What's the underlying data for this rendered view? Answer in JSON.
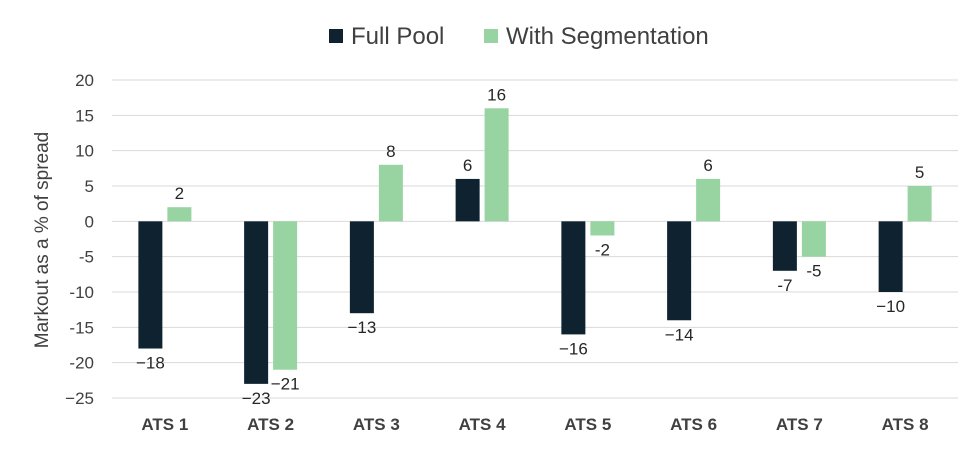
{
  "chart_data": {
    "type": "bar",
    "title": "",
    "xlabel": "",
    "ylabel": "Markout as a % of spread",
    "ylim": [
      -25,
      20
    ],
    "yticks": [
      20,
      15,
      10,
      5,
      0,
      -5,
      -10,
      -15,
      -20,
      -25
    ],
    "ytick_labels": [
      "20",
      "15",
      "10",
      "5",
      "0",
      "-5",
      "-10",
      "-15",
      "-20",
      "−25"
    ],
    "grid": true,
    "legend_position": "top-center",
    "categories": [
      "ATS 1",
      "ATS 2",
      "ATS 3",
      "ATS 4",
      "ATS 5",
      "ATS 6",
      "ATS 7",
      "ATS 8"
    ],
    "series": [
      {
        "name": "Full Pool",
        "color": "#0f2230",
        "values": [
          -18,
          -23,
          -13,
          6,
          -16,
          -14,
          -7,
          -10
        ],
        "labels": [
          "−18",
          "−23",
          "−13",
          "6",
          "−16",
          "−14",
          "-7",
          "−10"
        ]
      },
      {
        "name": "With Segmentation",
        "color": "#98d4a1",
        "values": [
          2,
          -21,
          8,
          16,
          -2,
          6,
          -5,
          5
        ],
        "labels": [
          "2",
          "−21",
          "8",
          "16",
          "-2",
          "6",
          "-5",
          "5"
        ]
      }
    ]
  }
}
